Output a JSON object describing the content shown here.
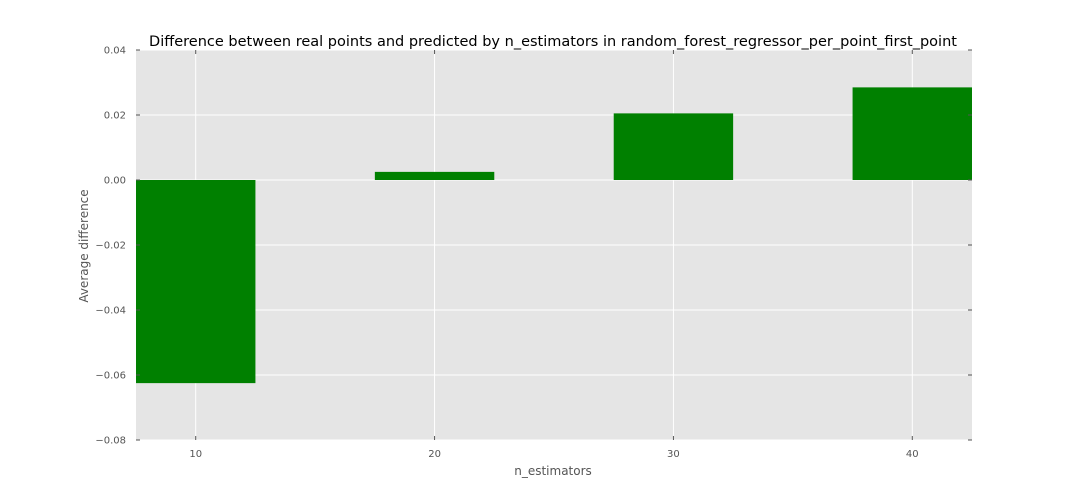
{
  "chart_data": {
    "type": "bar",
    "title": "Difference between real points and predicted by n_estimators in random_forest_regressor_per_point_first_point",
    "xlabel": "n_estimators",
    "ylabel": "Average difference",
    "categories": [
      10,
      20,
      30,
      40
    ],
    "values": [
      -0.0625,
      0.0025,
      0.0205,
      0.0285
    ],
    "bar_width": 5,
    "xlim": [
      7.5,
      42.5
    ],
    "ylim": [
      -0.08,
      0.04
    ],
    "xticks": [
      10,
      20,
      30,
      40
    ],
    "xtick_labels": [
      "10",
      "20",
      "30",
      "40"
    ],
    "yticks": [
      -0.08,
      -0.06,
      -0.04,
      -0.02,
      0.0,
      0.02,
      0.04
    ],
    "ytick_labels": [
      "−0.08",
      "−0.06",
      "−0.04",
      "−0.02",
      "0.00",
      "0.02",
      "0.04"
    ],
    "grid": true,
    "colors": {
      "bar": "#008000",
      "background": "#e5e5e5",
      "grid": "#ffffff"
    }
  }
}
